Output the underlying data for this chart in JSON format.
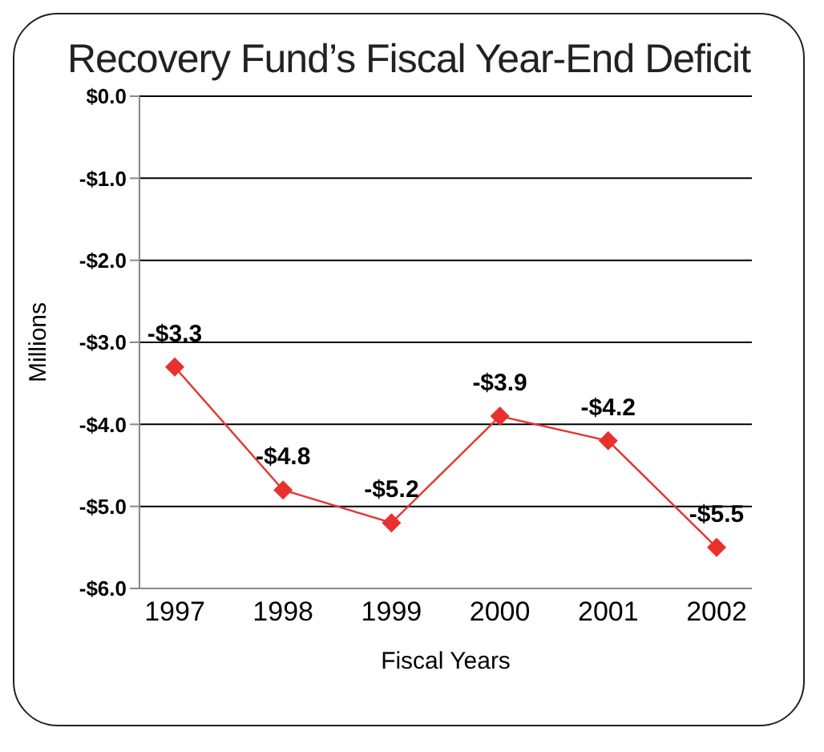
{
  "chart_data": {
    "type": "line",
    "title": "Recovery Fund’s Fiscal Year-End Deficit",
    "xlabel": "Fiscal Years",
    "ylabel": "Millions",
    "categories": [
      "1997",
      "1998",
      "1999",
      "2000",
      "2001",
      "2002"
    ],
    "series": [
      {
        "color": "#e8312f",
        "values": [
          -3.3,
          -4.8,
          -5.2,
          -3.9,
          -4.2,
          -5.5
        ],
        "value_labels": [
          "-$3.3",
          "-$4.8",
          "-$5.2",
          "-$3.9",
          "-$4.2",
          "-$5.5"
        ]
      }
    ],
    "ylim": [
      -6,
      0
    ],
    "yticks": [
      {
        "value": 0,
        "label": "$0.0"
      },
      {
        "value": -1,
        "label": "-$1.0"
      },
      {
        "value": -2,
        "label": "-$2.0"
      },
      {
        "value": -3,
        "label": "-$3.0"
      },
      {
        "value": -4,
        "label": "-$4.0"
      },
      {
        "value": -5,
        "label": "-$5.0"
      },
      {
        "value": -6,
        "label": "-$6.0"
      }
    ],
    "grid": "y",
    "marker": "diamond",
    "line_style": "solid",
    "legend": false
  }
}
